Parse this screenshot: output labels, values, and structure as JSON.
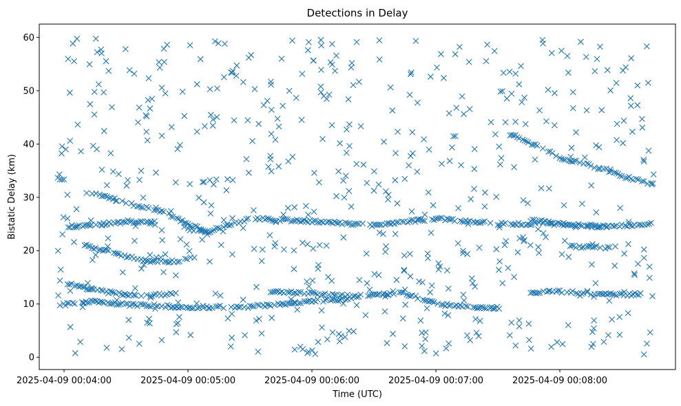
{
  "chart_data": {
    "type": "scatter",
    "title": "Detections in Delay",
    "xlabel": "Time (UTC)",
    "ylabel": "Bistatic Delay (km)",
    "marker": "x",
    "color": "#1f77b4",
    "grid": false,
    "legend": "none",
    "xlim": [
      "2025-04-09 00:03:48",
      "2025-04-09 00:08:56"
    ],
    "ylim": [
      -2.3,
      62.5
    ],
    "xticks": [
      "2025-04-09 00:04:00",
      "2025-04-09 00:05:00",
      "2025-04-09 00:06:00",
      "2025-04-09 00:07:00",
      "2025-04-09 00:08:00"
    ],
    "yticks": [
      0,
      10,
      20,
      30,
      40,
      50,
      60
    ],
    "time_range": [
      "2025-04-09 00:03:57",
      "2025-04-09 00:08:46"
    ],
    "tracks": [
      {
        "points": [
          [
            "2025-04-09 00:03:57",
            33.6
          ],
          [
            "2025-04-09 00:04:00",
            33.2
          ],
          [
            "2025-04-09 00:04:02",
            33.0
          ]
        ]
      },
      {
        "points": [
          [
            "2025-04-09 00:04:10",
            31.0
          ],
          [
            "2025-04-09 00:04:20",
            30.2
          ],
          [
            "2025-04-09 00:04:30",
            29.0
          ],
          [
            "2025-04-09 00:04:40",
            28.0
          ],
          [
            "2025-04-09 00:04:50",
            27.0
          ],
          [
            "2025-04-09 00:05:00",
            25.0
          ],
          [
            "2025-04-09 00:05:10",
            23.5
          ]
        ]
      },
      {
        "points": [
          [
            "2025-04-09 00:04:02",
            24.6
          ],
          [
            "2025-04-09 00:04:10",
            24.6
          ],
          [
            "2025-04-09 00:04:20",
            25.0
          ],
          [
            "2025-04-09 00:04:30",
            25.5
          ],
          [
            "2025-04-09 00:04:45",
            25.0
          ]
        ]
      },
      {
        "points": [
          [
            "2025-04-09 00:04:10",
            21.0
          ],
          [
            "2025-04-09 00:04:25",
            19.5
          ],
          [
            "2025-04-09 00:04:40",
            18.0
          ],
          [
            "2025-04-09 00:04:55",
            18.0
          ],
          [
            "2025-04-09 00:05:04",
            18.7
          ]
        ]
      },
      {
        "points": [
          [
            "2025-04-09 00:03:58",
            14.2
          ],
          [
            "2025-04-09 00:04:10",
            13.0
          ],
          [
            "2025-04-09 00:04:25",
            12.0
          ],
          [
            "2025-04-09 00:04:40",
            11.5
          ],
          [
            "2025-04-09 00:04:55",
            12.0
          ]
        ]
      },
      {
        "points": [
          [
            "2025-04-09 00:03:58",
            9.8
          ],
          [
            "2025-04-09 00:04:15",
            10.5
          ],
          [
            "2025-04-09 00:04:30",
            9.9
          ],
          [
            "2025-04-09 00:05:00",
            9.4
          ],
          [
            "2025-04-09 00:05:30",
            9.5
          ],
          [
            "2025-04-09 00:06:00",
            10.5
          ],
          [
            "2025-04-09 00:06:20",
            11.0
          ]
        ]
      },
      {
        "points": [
          [
            "2025-04-09 00:05:00",
            24.0
          ],
          [
            "2025-04-09 00:05:10",
            23.6
          ],
          [
            "2025-04-09 00:05:30",
            26.0
          ],
          [
            "2025-04-09 00:06:00",
            25.5
          ],
          [
            "2025-04-09 00:06:30",
            24.8
          ],
          [
            "2025-04-09 00:07:00",
            26.0
          ],
          [
            "2025-04-09 00:07:30",
            25.0
          ],
          [
            "2025-04-09 00:08:00",
            25.0
          ],
          [
            "2025-04-09 00:08:20",
            24.5
          ],
          [
            "2025-04-09 00:08:46",
            25.0
          ]
        ]
      },
      {
        "points": [
          [
            "2025-04-09 00:05:40",
            12.3
          ],
          [
            "2025-04-09 00:06:00",
            12.0
          ],
          [
            "2025-04-09 00:06:20",
            11.5
          ],
          [
            "2025-04-09 00:06:45",
            12.0
          ],
          [
            "2025-04-09 00:07:00",
            10.0
          ],
          [
            "2025-04-09 00:07:20",
            9.3
          ],
          [
            "2025-04-09 00:07:35",
            9.2
          ]
        ]
      },
      {
        "points": [
          [
            "2025-04-09 00:07:35",
            42.0
          ],
          [
            "2025-04-09 00:07:50",
            39.5
          ],
          [
            "2025-04-09 00:08:00",
            37.5
          ],
          [
            "2025-04-09 00:08:15",
            36.0
          ],
          [
            "2025-04-09 00:08:30",
            34.0
          ],
          [
            "2025-04-09 00:08:46",
            32.3
          ]
        ]
      },
      {
        "points": [
          [
            "2025-04-09 00:07:45",
            12.0
          ],
          [
            "2025-04-09 00:08:00",
            12.3
          ],
          [
            "2025-04-09 00:08:15",
            12.0
          ],
          [
            "2025-04-09 00:08:30",
            11.8
          ],
          [
            "2025-04-09 00:08:40",
            11.8
          ]
        ]
      },
      {
        "points": [
          [
            "2025-04-09 00:07:45",
            25.8
          ],
          [
            "2025-04-09 00:08:00",
            25.0
          ],
          [
            "2025-04-09 00:08:20",
            24.5
          ]
        ]
      },
      {
        "points": [
          [
            "2025-04-09 00:08:05",
            20.8
          ],
          [
            "2025-04-09 00:08:25",
            20.6
          ]
        ]
      }
    ]
  }
}
